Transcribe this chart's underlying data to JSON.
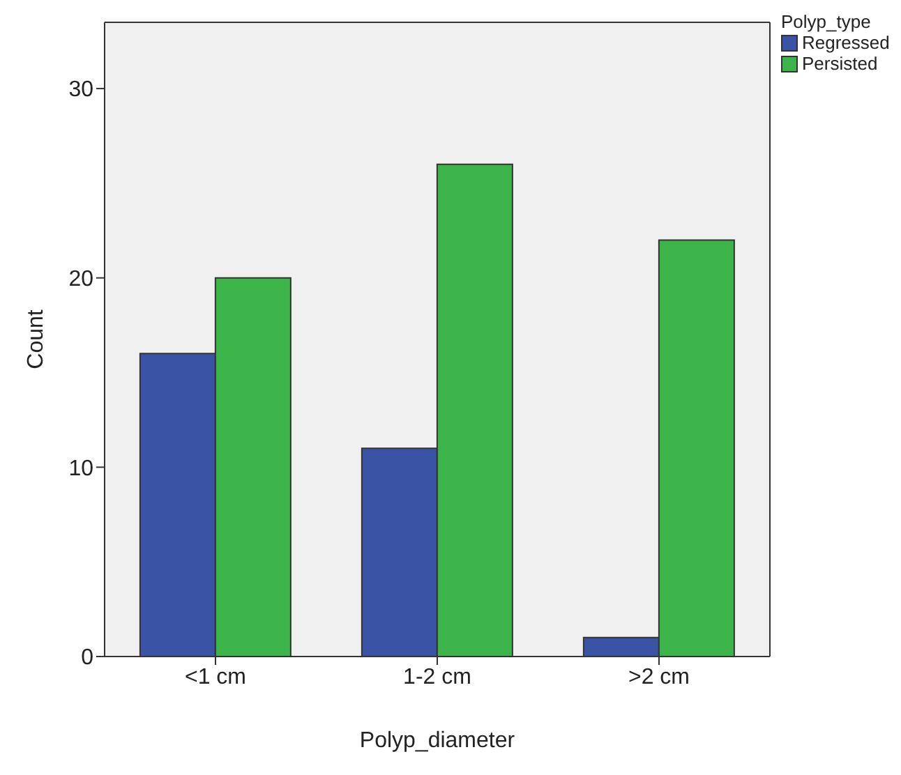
{
  "chart_data": {
    "type": "bar",
    "xlabel": "Polyp_diameter",
    "ylabel": "Count",
    "legend_title": "Polyp_type",
    "categories": [
      "<1 cm",
      "1-2 cm",
      ">2 cm"
    ],
    "series": [
      {
        "name": "Regressed",
        "color": "#3a53a4",
        "values": [
          16,
          11,
          1
        ]
      },
      {
        "name": "Persisted",
        "color": "#3cb44a",
        "values": [
          20,
          26,
          22
        ]
      }
    ],
    "ylim": [
      0,
      33.5
    ],
    "yticks": [
      0,
      10,
      20,
      30
    ],
    "grid": false,
    "legend": "top right"
  }
}
